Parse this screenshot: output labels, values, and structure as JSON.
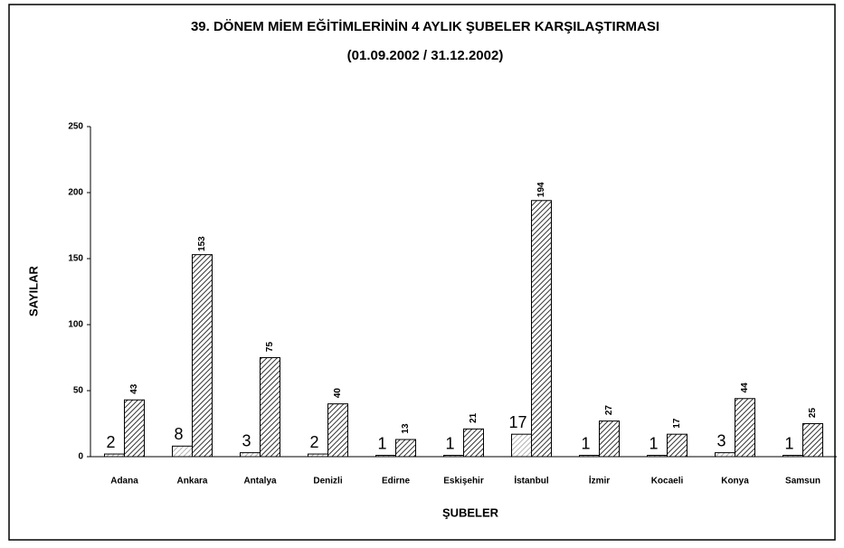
{
  "chart_data": {
    "type": "bar",
    "title": "39. DÖNEM MİEM EĞİTİMLERİNİN 4 AYLIK ŞUBELER KARŞILAŞTIRMASI",
    "subtitle": "(01.09.2002 / 31.12.2002)",
    "x_label": "ŞUBELER",
    "y_label": "SAYILAR",
    "categories": [
      "Adana",
      "Ankara",
      "Antalya",
      "Denizli",
      "Edirne",
      "Eskişehir",
      "İstanbul",
      "İzmir",
      "Kocaeli",
      "Konya",
      "Samsun"
    ],
    "series": [
      {
        "color": "#9a9a9a",
        "values": [
          2,
          8,
          3,
          2,
          1,
          1,
          17,
          1,
          1,
          3,
          1
        ]
      },
      {
        "color": "#333333",
        "values": [
          43,
          153,
          75,
          40,
          13,
          21,
          194,
          27,
          17,
          44,
          25
        ]
      }
    ],
    "ylim": [
      0,
      250
    ],
    "yticks": [
      0,
      50,
      100,
      150,
      200,
      250
    ],
    "grid": false
  }
}
